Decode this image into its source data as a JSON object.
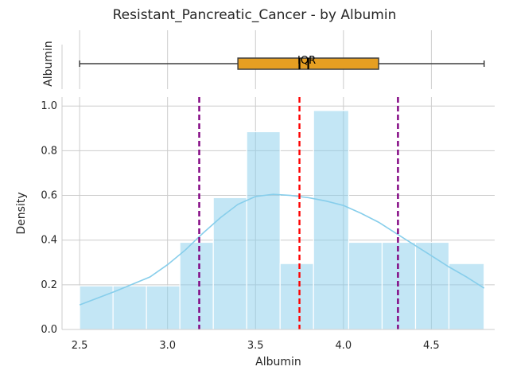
{
  "chart_data": {
    "type": "histogram-with-boxplot",
    "title": "Resistant_Pancreatic_Cancer - by Albumin",
    "boxplot": {
      "ylabel": "Albumin",
      "annotation": "IQR",
      "whisker_low": 2.5,
      "q1": 3.4,
      "median": 3.8,
      "mean": 3.75,
      "q3": 4.2,
      "whisker_high": 4.8,
      "box_color": "#E69F22"
    },
    "histogram": {
      "xlabel": "Albumin",
      "ylabel": "Density",
      "xlim": [
        2.4,
        4.86
      ],
      "ylim": [
        0,
        1.04
      ],
      "xticks": [
        "2.5",
        "3.0",
        "3.5",
        "4.0",
        "4.5"
      ],
      "xtick_values": [
        2.5,
        3.0,
        3.5,
        4.0,
        4.5
      ],
      "yticks": [
        "0.0",
        "0.2",
        "0.4",
        "0.6",
        "0.8",
        "1.0"
      ],
      "ytick_values": [
        0.0,
        0.2,
        0.4,
        0.6,
        0.8,
        1.0
      ],
      "bins": [
        {
          "x0": 2.5,
          "x1": 2.69,
          "density": 0.195
        },
        {
          "x0": 2.69,
          "x1": 2.88,
          "density": 0.195
        },
        {
          "x0": 2.88,
          "x1": 3.07,
          "density": 0.195
        },
        {
          "x0": 3.07,
          "x1": 3.26,
          "density": 0.39
        },
        {
          "x0": 3.26,
          "x1": 3.45,
          "density": 0.59
        },
        {
          "x0": 3.45,
          "x1": 3.64,
          "density": 0.885
        },
        {
          "x0": 3.64,
          "x1": 3.83,
          "density": 0.295
        },
        {
          "x0": 3.83,
          "x1": 4.03,
          "density": 0.98
        },
        {
          "x0": 4.03,
          "x1": 4.22,
          "density": 0.39
        },
        {
          "x0": 4.22,
          "x1": 4.41,
          "density": 0.39
        },
        {
          "x0": 4.41,
          "x1": 4.6,
          "density": 0.39
        },
        {
          "x0": 4.6,
          "x1": 4.8,
          "density": 0.295
        }
      ],
      "kde": {
        "x": [
          2.5,
          2.7,
          2.9,
          3.0,
          3.1,
          3.2,
          3.3,
          3.4,
          3.5,
          3.6,
          3.7,
          3.8,
          3.9,
          4.0,
          4.1,
          4.2,
          4.3,
          4.4,
          4.5,
          4.6,
          4.7,
          4.8
        ],
        "y": [
          0.11,
          0.17,
          0.235,
          0.29,
          0.355,
          0.43,
          0.5,
          0.56,
          0.595,
          0.605,
          0.6,
          0.59,
          0.575,
          0.555,
          0.52,
          0.48,
          0.43,
          0.38,
          0.33,
          0.28,
          0.235,
          0.185
        ]
      },
      "vlines": [
        {
          "value": 3.18,
          "color": "#800080",
          "style": "dashed"
        },
        {
          "value": 3.75,
          "color": "#FF0000",
          "style": "dashed"
        },
        {
          "value": 4.31,
          "color": "#800080",
          "style": "dashed"
        }
      ],
      "bar_color": "#87CEEB",
      "kde_color": "#87CEEB"
    }
  }
}
